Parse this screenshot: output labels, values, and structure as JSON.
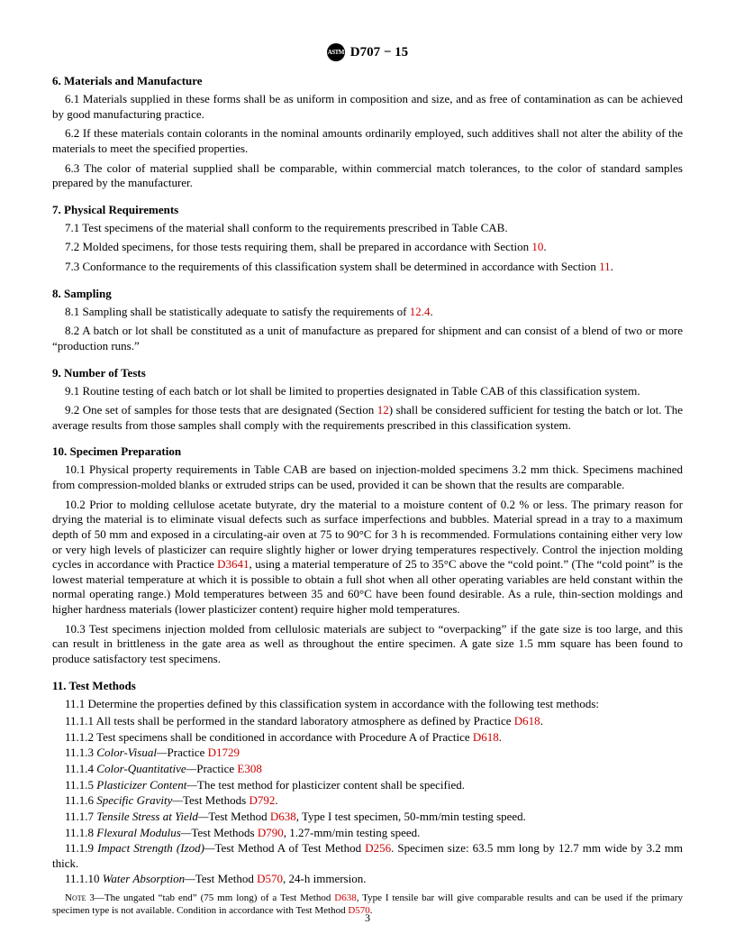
{
  "header": {
    "logo_text": "ASTM",
    "designation": "D707 − 15"
  },
  "sections": {
    "s6": {
      "heading": "6.  Materials and Manufacture",
      "p1": "6.1 Materials supplied in these forms shall be as uniform in composition and size, and as free of contamination as can be achieved by good manufacturing practice.",
      "p2": "6.2 If these materials contain colorants in the nominal amounts ordinarily employed, such additives shall not alter the ability of the materials to meet the specified properties.",
      "p3": "6.3 The color of material supplied shall be comparable, within commercial match tolerances, to the color of standard samples prepared by the manufacturer."
    },
    "s7": {
      "heading": "7.  Physical Requirements",
      "p1": "7.1 Test specimens of the material shall conform to the requirements prescribed in Table CAB.",
      "p2_pre": "7.2 Molded specimens, for those tests requiring them, shall be prepared in accordance with Section ",
      "p2_link": "10",
      "p2_post": ".",
      "p3_pre": "7.3 Conformance to the requirements of this classification system shall be determined in accordance with Section ",
      "p3_link": "11",
      "p3_post": "."
    },
    "s8": {
      "heading": "8.  Sampling",
      "p1_pre": "8.1 Sampling shall be statistically adequate to satisfy the requirements of ",
      "p1_link": "12.4",
      "p1_post": ".",
      "p2": "8.2 A batch or lot shall be constituted as a unit of manufacture as prepared for shipment and can consist of a blend of two or more “production runs.”"
    },
    "s9": {
      "heading": "9.  Number of Tests",
      "p1": "9.1 Routine testing of each batch or lot shall be limited to properties designated in Table CAB of this classification system.",
      "p2_pre": "9.2 One set of samples for those tests that are designated (Section ",
      "p2_link": "12",
      "p2_post": ") shall be considered sufficient for testing the batch or lot. The average results from those samples shall comply with the requirements prescribed in this classification system."
    },
    "s10": {
      "heading": "10.  Specimen Preparation",
      "p1": "10.1 Physical property requirements in Table CAB are based on injection-molded specimens 3.2 mm thick. Specimens machined from compression-molded blanks or extruded strips can be used, provided it can be shown that the results are comparable.",
      "p2_pre": "10.2 Prior to molding cellulose acetate butyrate, dry the material to a moisture content of 0.2 % or less. The primary reason for drying the material is to eliminate visual defects such as surface imperfections and bubbles. Material spread in a tray to a maximum depth of 50 mm and exposed in a circulating-air oven at 75 to 90°C for 3 h is recommended. Formulations containing either very low or very high levels of plasticizer can require slightly higher or lower drying temperatures respectively. Control the injection molding cycles in accordance with Practice ",
      "p2_link": "D3641",
      "p2_post": ", using a material temperature of 25 to 35°C above the “cold point.” (The “cold point” is the lowest material temperature at which it is possible to obtain a full shot when all other operating variables are held constant within the normal operating range.) Mold temperatures between 35 and 60°C have been found desirable. As a rule, thin-section moldings and higher hardness materials (lower plasticizer content) require higher mold temperatures.",
      "p3": "10.3 Test specimens injection molded from cellulosic materials are subject to “overpacking” if the gate size is too large, and this can result in brittleness in the gate area as well as throughout the entire specimen. A gate size 1.5 mm square has been found to produce satisfactory test specimens."
    },
    "s11": {
      "heading": "11.  Test Methods",
      "p1": "11.1 Determine the properties defined by this classification system in accordance with the following test methods:",
      "i1_pre": "11.1.1 All tests shall be performed in the standard laboratory atmosphere as defined by Practice ",
      "i1_link": "D618",
      "i1_post": ".",
      "i2_pre": "11.1.2 Test specimens shall be conditioned in accordance with Procedure A of Practice ",
      "i2_link": "D618",
      "i2_post": ".",
      "i3_num": "11.1.3 ",
      "i3_label": "Color-Visual—",
      "i3_pre": "Practice ",
      "i3_link": "D1729",
      "i4_num": "11.1.4 ",
      "i4_label": "Color-Quantitative—",
      "i4_pre": "Practice ",
      "i4_link": "E308",
      "i5_num": "11.1.5 ",
      "i5_label": "Plasticizer Content—",
      "i5_post": "The test method for plasticizer content shall be specified.",
      "i6_num": "11.1.6 ",
      "i6_label": "Specific Gravity—",
      "i6_pre": "Test Methods ",
      "i6_link": "D792",
      "i6_post": ".",
      "i7_num": "11.1.7 ",
      "i7_label": "Tensile Stress at Yield—",
      "i7_pre": "Test Method ",
      "i7_link": "D638",
      "i7_post": ", Type I test specimen, 50-mm/min testing speed.",
      "i8_num": "11.1.8 ",
      "i8_label": "Flexural Modulus—",
      "i8_pre": "Test Methods ",
      "i8_link": "D790",
      "i8_post": ", 1.27-mm/min testing speed.",
      "i9_num": "11.1.9 ",
      "i9_label": "Impact Strength (Izod)—",
      "i9_pre": "Test Method A of Test Method ",
      "i9_link": "D256",
      "i9_post": ". Specimen size: 63.5 mm long by 12.7 mm wide by 3.2 mm thick.",
      "i10_num": "11.1.10 ",
      "i10_label": "Water Absorption—",
      "i10_pre": "Test Method ",
      "i10_link": "D570",
      "i10_post": ", 24-h immersion."
    },
    "note": {
      "label": "Note 3—",
      "pre": "The ungated “tab end” (75 mm long) of a Test Method ",
      "link1": "D638",
      "mid": ", Type I tensile bar will give comparable results and can be used if the primary specimen type is not available. Condition in accordance with Test Method ",
      "link2": "D570",
      "post": "."
    }
  },
  "page_number": "3",
  "colors": {
    "link": "#cc0000",
    "text": "#000000",
    "background": "#ffffff"
  }
}
